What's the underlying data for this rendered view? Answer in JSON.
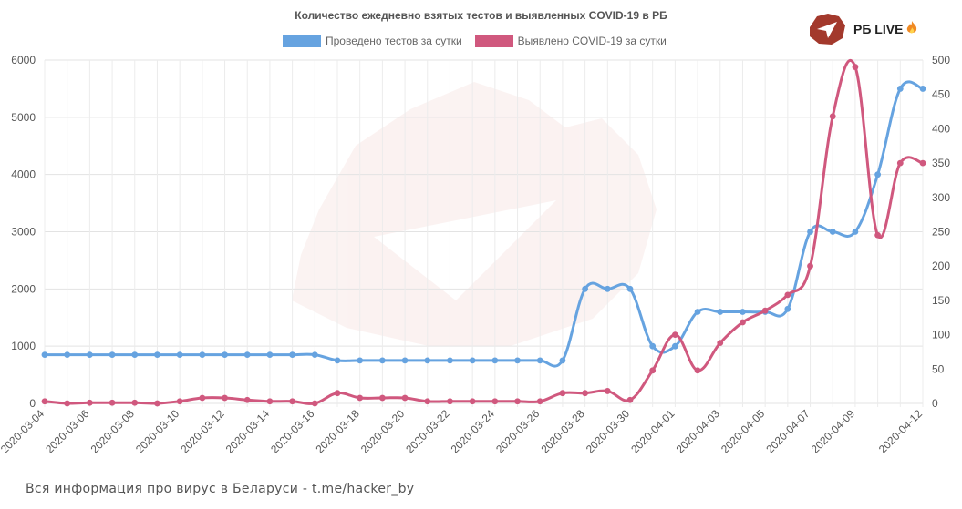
{
  "chart_data": {
    "type": "line",
    "title": "Количество ежедневно взятых тестов и выявленных COVID-19 в РБ",
    "x": [
      "2020-03-04",
      "2020-03-05",
      "2020-03-06",
      "2020-03-07",
      "2020-03-08",
      "2020-03-09",
      "2020-03-10",
      "2020-03-11",
      "2020-03-12",
      "2020-03-13",
      "2020-03-14",
      "2020-03-15",
      "2020-03-16",
      "2020-03-17",
      "2020-03-18",
      "2020-03-19",
      "2020-03-20",
      "2020-03-21",
      "2020-03-22",
      "2020-03-23",
      "2020-03-24",
      "2020-03-25",
      "2020-03-26",
      "2020-03-27",
      "2020-03-28",
      "2020-03-29",
      "2020-03-30",
      "2020-03-31",
      "2020-04-01",
      "2020-04-02",
      "2020-04-03",
      "2020-04-04",
      "2020-04-05",
      "2020-04-06",
      "2020-04-07",
      "2020-04-08",
      "2020-04-09",
      "2020-04-10",
      "2020-04-11",
      "2020-04-12"
    ],
    "x_tick_labels": [
      "2020-03-04",
      "2020-03-06",
      "2020-03-08",
      "2020-03-10",
      "2020-03-12",
      "2020-03-14",
      "2020-03-16",
      "2020-03-18",
      "2020-03-20",
      "2020-03-22",
      "2020-03-24",
      "2020-03-26",
      "2020-03-28",
      "2020-03-30",
      "2020-04-01",
      "2020-04-03",
      "2020-04-05",
      "2020-04-07",
      "2020-04-09",
      "2020-04-12"
    ],
    "y_left": {
      "ylim": [
        0,
        6000
      ],
      "ticks": [
        "0",
        "1000",
        "2000",
        "3000",
        "4000",
        "5000",
        "6000"
      ]
    },
    "y_right": {
      "ylim": [
        0,
        500
      ],
      "ticks": [
        "0",
        "50",
        "100",
        "150",
        "200",
        "250",
        "300",
        "350",
        "400",
        "450",
        "500"
      ]
    },
    "grid": true,
    "legend_position": "top-center",
    "series": [
      {
        "name": "Проведено тестов за сутки",
        "axis": "left",
        "color": "#66a3e0",
        "values": [
          850,
          850,
          850,
          850,
          850,
          850,
          850,
          850,
          850,
          850,
          850,
          850,
          850,
          750,
          750,
          750,
          750,
          750,
          750,
          750,
          750,
          750,
          750,
          750,
          2000,
          2000,
          2000,
          1000,
          1000,
          1600,
          1600,
          1600,
          1600,
          1650,
          3000,
          3000,
          3000,
          4000,
          5500,
          5500
        ]
      },
      {
        "name": "Выявлено COVID-19 за сутки",
        "axis": "right",
        "color": "#d0587e",
        "values": [
          3,
          0,
          1,
          1,
          1,
          0,
          3,
          8,
          8,
          5,
          3,
          3,
          0,
          15,
          8,
          8,
          8,
          3,
          3,
          3,
          3,
          3,
          3,
          15,
          15,
          18,
          5,
          48,
          100,
          48,
          88,
          118,
          135,
          158,
          200,
          418,
          490,
          245,
          350,
          350
        ]
      }
    ]
  },
  "logo": {
    "text": "РБ LIVE"
  },
  "footer": {
    "text": "Вся информация про вирус в Беларуси - t.me/hacker_by"
  }
}
